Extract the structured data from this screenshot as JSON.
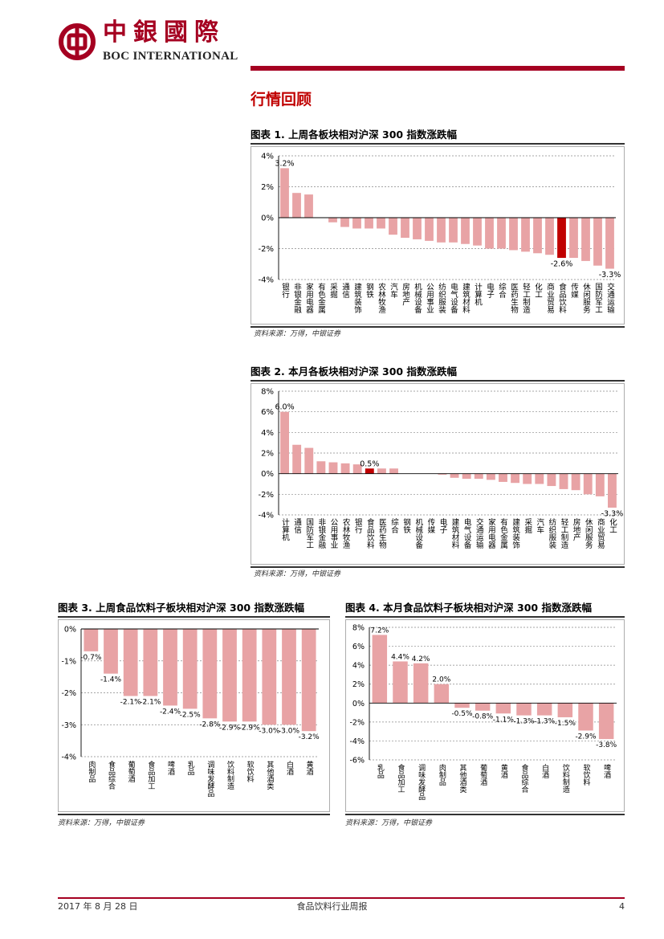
{
  "header": {
    "logo_cn": "中銀國際",
    "logo_en": "BOC INTERNATIONAL",
    "logo_icon": "bank-of-china-logo-icon",
    "accent_color": "#a50021"
  },
  "section_title": "行情回顾",
  "figures": [
    {
      "title": "图表 1. 上周各板块相对沪深 300 指数涨跌幅",
      "source": "资料来源：万得，中银证券"
    },
    {
      "title": "图表 2. 本月各板块相对沪深 300 指数涨跌幅",
      "source": "资料来源：万得，中银证券"
    },
    {
      "title": "图表 3. 上周食品饮料子板块相对沪深 300 指数涨跌幅",
      "source": "资料来源：万得，中银证券"
    },
    {
      "title": "图表 4. 本月食品饮料子板块相对沪深 300 指数涨跌幅",
      "source": "资料来源：万得，中银证券"
    }
  ],
  "chart_data": [
    {
      "type": "bar",
      "categories": [
        "银行",
        "非银金融",
        "家用电器",
        "有色金属",
        "采掘",
        "通信",
        "建筑装饰",
        "钢铁",
        "农林牧渔",
        "汽车",
        "房地产",
        "机械设备",
        "公用事业",
        "纺织服装",
        "电气设备",
        "建筑材料",
        "计算机",
        "电子",
        "综合",
        "医药生物",
        "轻工制造",
        "化工",
        "商业贸易",
        "食品饮料",
        "传媒",
        "休闲服务",
        "国防军工",
        "交通运输"
      ],
      "values": [
        3.2,
        1.6,
        1.5,
        0.0,
        -0.3,
        -0.6,
        -0.7,
        -0.7,
        -0.7,
        -1.1,
        -1.3,
        -1.4,
        -1.5,
        -1.6,
        -1.6,
        -1.7,
        -1.8,
        -2.0,
        -2.0,
        -2.1,
        -2.2,
        -2.3,
        -2.4,
        -2.6,
        -2.6,
        -2.8,
        -3.1,
        -3.3
      ],
      "highlight": "食品饮料",
      "ylim": [
        -4,
        4
      ],
      "yticks": [
        "4%",
        "2%",
        "0%",
        "-2%",
        "-4%"
      ],
      "ytick_values": [
        4,
        2,
        0,
        -2,
        -4
      ],
      "data_labels": [
        {
          "category": "银行",
          "text": "3.2%"
        },
        {
          "category": "食品饮料",
          "text": "-2.6%"
        },
        {
          "category": "交通运输",
          "text": "-3.3%"
        }
      ],
      "bar_color": "#e8a3a5",
      "highlight_color": "#c00000",
      "grid": true
    },
    {
      "type": "bar",
      "categories": [
        "计算机",
        "通信",
        "国防军工",
        "非银金融",
        "公用事业",
        "农林牧渔",
        "银行",
        "食品饮料",
        "医药生物",
        "综合",
        "钢铁",
        "机械设备",
        "传媒",
        "电子",
        "建筑材料",
        "电气设备",
        "交通运输",
        "家用电器",
        "有色金属",
        "建筑装饰",
        "采掘",
        "汽车",
        "纺织服装",
        "轻工制造",
        "房地产",
        "休闲服务",
        "商业贸易",
        "化工"
      ],
      "values": [
        6.0,
        2.8,
        2.5,
        1.2,
        1.1,
        1.0,
        0.9,
        0.5,
        0.5,
        0.5,
        0.0,
        0.0,
        0.0,
        -0.1,
        -0.4,
        -0.5,
        -0.5,
        -0.6,
        -0.8,
        -0.9,
        -1.0,
        -1.0,
        -1.2,
        -1.5,
        -1.6,
        -2.0,
        -2.2,
        -3.3
      ],
      "highlight": "食品饮料",
      "ylim": [
        -4,
        8
      ],
      "yticks": [
        "8%",
        "6%",
        "4%",
        "2%",
        "0%",
        "-2%",
        "-4%"
      ],
      "ytick_values": [
        8,
        6,
        4,
        2,
        0,
        -2,
        -4
      ],
      "data_labels": [
        {
          "category": "计算机",
          "text": "6.0%"
        },
        {
          "category": "食品饮料",
          "text": "0.5%"
        },
        {
          "category": "化工",
          "text": "-3.3%"
        }
      ],
      "bar_color": "#e8a3a5",
      "highlight_color": "#c00000",
      "grid": true
    },
    {
      "type": "bar",
      "categories": [
        "肉制品",
        "食品综合",
        "葡萄酒",
        "食品加工",
        "啤酒",
        "乳品",
        "调味发酵品",
        "饮料制造",
        "软饮料",
        "其他酒类",
        "白酒",
        "黄酒"
      ],
      "values": [
        -0.7,
        -1.4,
        -2.1,
        -2.1,
        -2.4,
        -2.5,
        -2.8,
        -2.9,
        -2.9,
        -3.0,
        -3.0,
        -3.2
      ],
      "ylim": [
        -4,
        0
      ],
      "yticks": [
        "0%",
        "-1%",
        "-2%",
        "-3%",
        "-4%"
      ],
      "ytick_values": [
        0,
        -1,
        -2,
        -3,
        -4
      ],
      "data_labels": [
        "-0.7%",
        "-1.4%",
        "-2.1%",
        "-2.1%",
        "-2.4%",
        "-2.5%",
        "-2.8%",
        "-2.9%",
        "-2.9%",
        "-3.0%",
        "-3.0%",
        "-3.2%"
      ],
      "bar_color": "#e8a3a5",
      "grid": true
    },
    {
      "type": "bar",
      "categories": [
        "乳品",
        "食品加工",
        "调味发酵品",
        "肉制品",
        "其他酒类",
        "葡萄酒",
        "黄酒",
        "食品综合",
        "白酒",
        "饮料制造",
        "软饮料",
        "啤酒"
      ],
      "values": [
        7.2,
        4.4,
        4.2,
        2.0,
        -0.5,
        -0.8,
        -1.1,
        -1.3,
        -1.3,
        -1.5,
        -2.9,
        -3.8
      ],
      "ylim": [
        -6,
        8
      ],
      "yticks": [
        "8%",
        "6%",
        "4%",
        "2%",
        "0%",
        "-2%",
        "-4%",
        "-6%"
      ],
      "ytick_values": [
        8,
        6,
        4,
        2,
        0,
        -2,
        -4,
        -6
      ],
      "data_labels": [
        "7.2%",
        "4.4%",
        "4.2%",
        "2.0%",
        "-0.5%",
        "-0.8%",
        "-1.1%",
        "-1.3%",
        "-1.3%",
        "-1.5%",
        "-2.9%",
        "-3.8%"
      ],
      "bar_color": "#e8a3a5",
      "grid": true
    }
  ],
  "footer": {
    "date": "2017 年 8 月 28 日",
    "report": "食品饮料行业周报",
    "page": "4"
  }
}
